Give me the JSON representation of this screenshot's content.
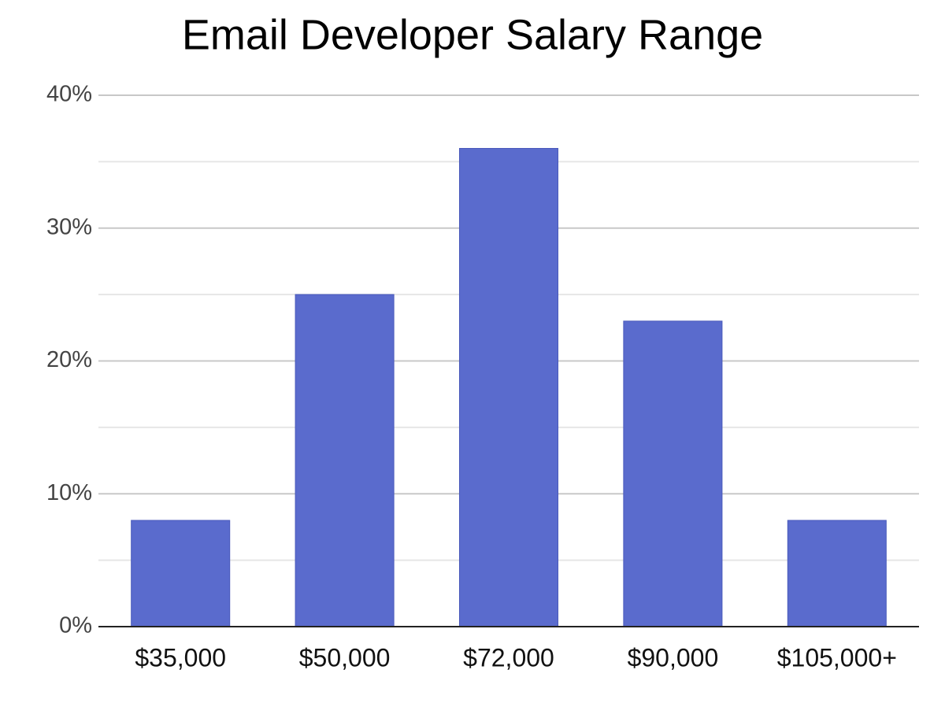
{
  "chart_data": {
    "type": "bar",
    "title": "Email Developer Salary Range",
    "categories": [
      "$35,000",
      "$50,000",
      "$72,000",
      "$90,000",
      "$105,000+"
    ],
    "values": [
      8,
      25,
      36,
      23,
      8
    ],
    "color": "#5a6bcd",
    "ylim": [
      0,
      40
    ],
    "yticks": [
      {
        "value": 0,
        "label": "0%"
      },
      {
        "value": 10,
        "label": "10%"
      },
      {
        "value": 20,
        "label": "20%"
      },
      {
        "value": 30,
        "label": "30%"
      },
      {
        "value": 40,
        "label": "40%"
      }
    ],
    "minor_yticks": [
      5,
      15,
      25,
      35
    ],
    "grid": true
  }
}
